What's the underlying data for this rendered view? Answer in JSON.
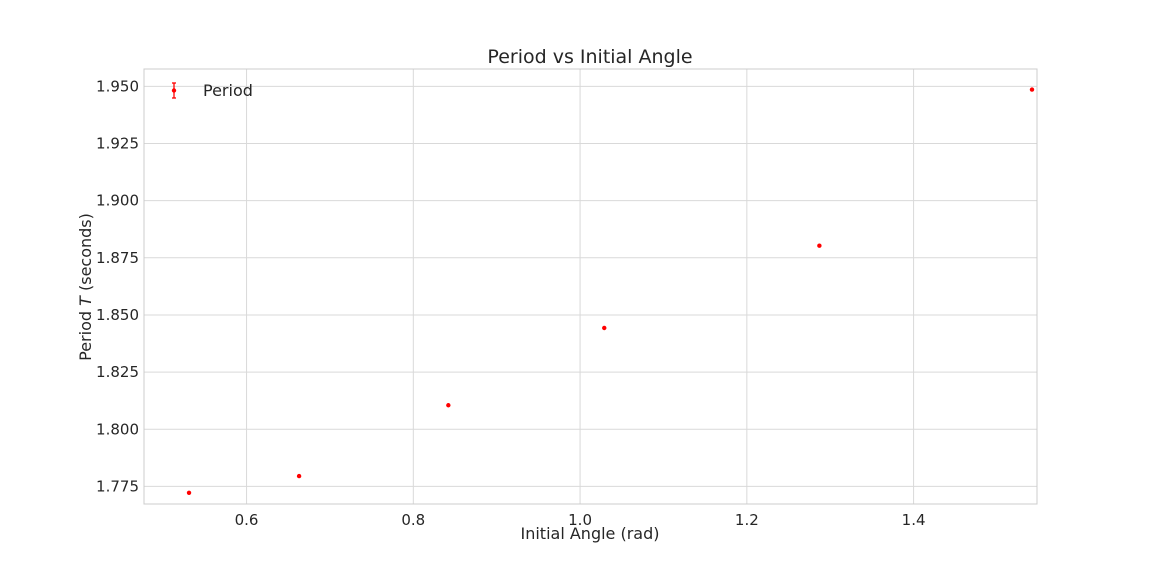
{
  "chart_data": {
    "type": "scatter",
    "title": "Period vs Initial Angle",
    "xlabel": "Initial Angle (rad)",
    "ylabel_prefix": "Period ",
    "ylabel_italic": "T",
    "ylabel_suffix": " (seconds)",
    "xlim": [
      0.477,
      1.548
    ],
    "ylim": [
      1.7673,
      1.9576
    ],
    "xticks": [
      0.6,
      0.8,
      1.0,
      1.2,
      1.4
    ],
    "xtick_labels": [
      "0.6",
      "0.8",
      "1.0",
      "1.2",
      "1.4"
    ],
    "yticks": [
      1.775,
      1.8,
      1.825,
      1.85,
      1.875,
      1.9,
      1.925,
      1.95
    ],
    "ytick_labels": [
      "1.775",
      "1.800",
      "1.825",
      "1.850",
      "1.875",
      "1.900",
      "1.925",
      "1.950"
    ],
    "grid": true,
    "legend": {
      "position": "top-left",
      "entries": [
        "Period"
      ]
    },
    "series": [
      {
        "name": "Period",
        "color": "#ff0000",
        "marker": "errorbar-dot",
        "x": [
          0.531,
          0.663,
          0.842,
          1.029,
          1.287,
          1.542
        ],
        "y": [
          1.7722,
          1.7795,
          1.8105,
          1.8443,
          1.8803,
          1.9486
        ]
      }
    ]
  }
}
